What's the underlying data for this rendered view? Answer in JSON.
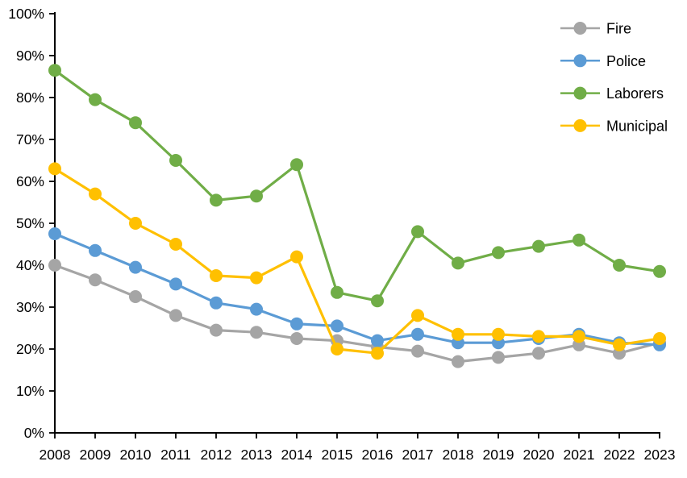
{
  "chart_data": {
    "type": "line",
    "title": "",
    "xlabel": "",
    "ylabel": "",
    "x": [
      "2008",
      "2009",
      "2010",
      "2011",
      "2012",
      "2013",
      "2014",
      "2015",
      "2016",
      "2017",
      "2018",
      "2019",
      "2020",
      "2021",
      "2022",
      "2023"
    ],
    "series": [
      {
        "name": "Fire",
        "color": "#A5A5A5",
        "values": [
          40,
          36.5,
          32.5,
          28,
          24.5,
          24,
          22.5,
          22,
          20.5,
          19.5,
          17,
          18,
          19,
          21,
          19,
          21.5
        ]
      },
      {
        "name": "Police",
        "color": "#5B9BD5",
        "values": [
          47.5,
          43.5,
          39.5,
          35.5,
          31,
          29.5,
          26,
          25.5,
          22,
          23.5,
          21.5,
          21.5,
          22.5,
          23.5,
          21.5,
          21
        ]
      },
      {
        "name": "Laborers",
        "color": "#70AD47",
        "values": [
          86.5,
          79.5,
          74,
          65,
          55.5,
          56.5,
          64,
          33.5,
          31.5,
          48,
          40.5,
          43,
          44.5,
          46,
          40,
          38.5
        ]
      },
      {
        "name": "Municipal",
        "color": "#FFC000",
        "values": [
          63,
          57,
          50,
          45,
          37.5,
          37,
          42,
          20,
          19,
          28,
          23.5,
          23.5,
          23,
          23,
          21,
          22.5
        ]
      }
    ],
    "ylim": [
      0,
      100
    ],
    "ytick_step": 10,
    "ytick_suffix": "%",
    "grid": false,
    "legend_position": "top-right",
    "marker": "circle",
    "colors": {
      "axis": "#000000",
      "background": "#FFFFFF",
      "text": "#000000"
    }
  }
}
